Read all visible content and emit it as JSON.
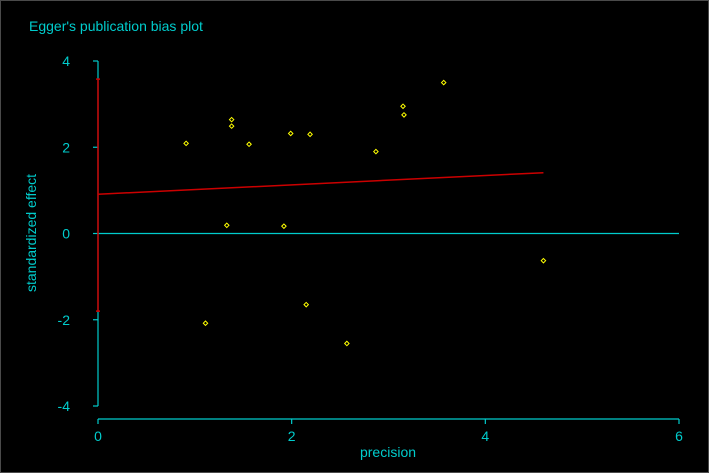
{
  "chart_data": {
    "type": "scatter",
    "title": "Egger's publication bias plot",
    "xlabel": "precision",
    "ylabel": "standardized effect",
    "xlim": [
      0,
      6
    ],
    "ylim": [
      -4,
      4
    ],
    "x_ticks": [
      0,
      2,
      4,
      6
    ],
    "y_ticks": [
      -4,
      -2,
      0,
      2,
      4
    ],
    "grid": false,
    "legend": "none",
    "points": [
      {
        "x": 0.91,
        "y": 2.09
      },
      {
        "x": 1.11,
        "y": -2.08
      },
      {
        "x": 1.33,
        "y": 0.19
      },
      {
        "x": 1.38,
        "y": 2.64
      },
      {
        "x": 1.38,
        "y": 2.49
      },
      {
        "x": 1.56,
        "y": 2.07
      },
      {
        "x": 1.92,
        "y": 0.17
      },
      {
        "x": 1.99,
        "y": 2.32
      },
      {
        "x": 2.15,
        "y": -1.65
      },
      {
        "x": 2.19,
        "y": 2.3
      },
      {
        "x": 2.57,
        "y": -2.55
      },
      {
        "x": 2.87,
        "y": 1.9
      },
      {
        "x": 3.15,
        "y": 2.95
      },
      {
        "x": 3.16,
        "y": 2.75
      },
      {
        "x": 3.57,
        "y": 3.5
      },
      {
        "x": 4.6,
        "y": -0.63
      }
    ],
    "regression_line": {
      "x": [
        0,
        4.6
      ],
      "y": [
        0.91,
        1.41
      ]
    },
    "intercept_ci": {
      "x": 0,
      "low": -1.8,
      "high": 3.58
    },
    "reference_line_y": 0,
    "colors": {
      "background": "#000000",
      "axis": "#00cccc",
      "points": "#ffff00",
      "regression": "#cc0000",
      "reference": "#00cccc"
    }
  }
}
